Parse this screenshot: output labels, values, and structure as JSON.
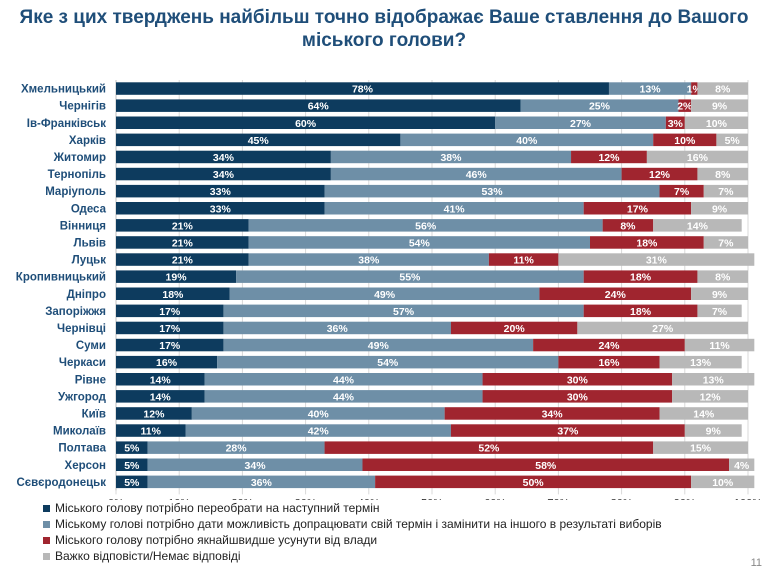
{
  "title": "Яке з цих тверджень найбільш точно відображає Ваше ставлення до Вашого міського голови?",
  "page_number": "11",
  "colors": {
    "s1": "#0d3b5e",
    "s2": "#6e8fa7",
    "s3": "#a0252f",
    "s4": "#b8b8b8"
  },
  "chart_data": {
    "type": "bar",
    "orientation": "horizontal",
    "stacked": true,
    "title": "Яке з цих тверджень найбільш точно відображає Ваше ставлення до Вашого міського голови?",
    "xlim": [
      0,
      100
    ],
    "x_ticks": [
      "0%",
      "10%",
      "20%",
      "30%",
      "40%",
      "50%",
      "60%",
      "70%",
      "80%",
      "90%",
      "100%"
    ],
    "grid": true,
    "legend_position": "bottom",
    "categories": [
      "Хмельницький",
      "Чернігів",
      "Ів-Франківськ",
      "Харків",
      "Житомир",
      "Тернопіль",
      "Маріуполь",
      "Одеса",
      "Вінниця",
      "Львів",
      "Луцьк",
      "Кропивницький",
      "Дніпро",
      "Запоріжжя",
      "Чернівці",
      "Суми",
      "Черкаси",
      "Рівне",
      "Ужгород",
      "Київ",
      "Миколаїв",
      "Полтава",
      "Херсон",
      "Сєвєродонецьк"
    ],
    "series": [
      {
        "name": "Міського голову  потрібно переобрати на наступний термін",
        "values": [
          78,
          64,
          60,
          45,
          34,
          34,
          33,
          33,
          21,
          21,
          21,
          19,
          18,
          17,
          17,
          17,
          16,
          14,
          14,
          12,
          11,
          5,
          5,
          5
        ]
      },
      {
        "name": "Міському голові потрібно дати можливість допрацювати свій термін і замінити на іншого в результаті виборів",
        "values": [
          13,
          25,
          27,
          40,
          38,
          46,
          53,
          41,
          56,
          54,
          38,
          55,
          49,
          57,
          36,
          49,
          54,
          44,
          44,
          40,
          42,
          28,
          34,
          36
        ]
      },
      {
        "name": "Міського голову потрібно якнайшвидше усунути від влади",
        "values": [
          1,
          2,
          3,
          10,
          12,
          12,
          7,
          17,
          8,
          18,
          11,
          18,
          24,
          18,
          20,
          24,
          16,
          30,
          30,
          34,
          37,
          52,
          58,
          50
        ]
      },
      {
        "name": "Важко відповісти/Немає відповіді",
        "values": [
          8,
          9,
          10,
          5,
          16,
          8,
          7,
          9,
          14,
          7,
          31,
          8,
          9,
          7,
          27,
          11,
          13,
          13,
          12,
          14,
          9,
          15,
          4,
          10
        ]
      }
    ]
  }
}
